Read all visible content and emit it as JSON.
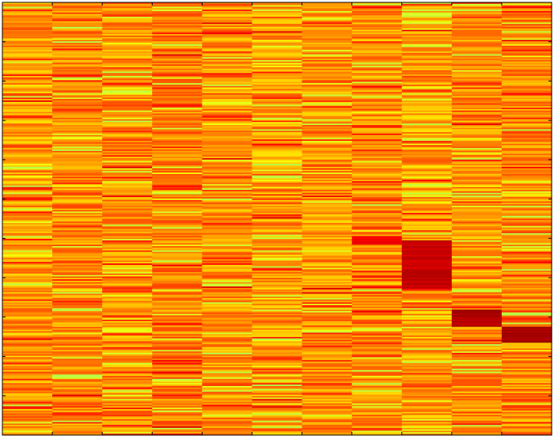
{
  "chart_data": {
    "type": "heatmap",
    "title": "",
    "xlabel": "",
    "ylabel": "",
    "n_columns": 11,
    "n_rows": 300,
    "colormap": "jet",
    "colormap_range": [
      0,
      1
    ],
    "grid": false,
    "colorbar": false,
    "x_tick_labels": [],
    "y_tick_labels": [],
    "value_profile": {
      "column_baseline": [
        0.72,
        0.74,
        0.73,
        0.75,
        0.73,
        0.72,
        0.73,
        0.73,
        0.72,
        0.73,
        0.74
      ],
      "row_jitter": 0.07,
      "low_value": 0.55,
      "hot_bands": [
        {
          "column": 7,
          "row_start": 0.54,
          "row_end": 0.56,
          "value": 0.88
        },
        {
          "column": 8,
          "row_start": 0.55,
          "row_end": 0.66,
          "value": 0.93
        },
        {
          "column": 9,
          "row_start": 0.71,
          "row_end": 0.75,
          "value": 0.95
        },
        {
          "column": 10,
          "row_start": 0.75,
          "row_end": 0.785,
          "value": 0.96
        }
      ]
    },
    "colors": {
      "axes_background": "#ffff00",
      "frame": "#000000"
    }
  }
}
